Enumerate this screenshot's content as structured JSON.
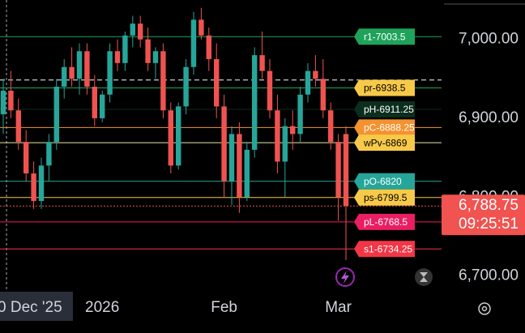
{
  "chart_data": {
    "type": "candlestick",
    "categories": [
      null,
      null,
      null,
      null,
      "0 Dec '25",
      null,
      null,
      null,
      null,
      null,
      null,
      null,
      null,
      "2026",
      null,
      null,
      null,
      null,
      null,
      null,
      null,
      null,
      null,
      null,
      null,
      null,
      null,
      null,
      null,
      "Feb",
      null,
      null,
      null,
      null,
      null,
      null,
      null,
      null,
      null,
      null,
      null,
      null,
      null,
      null,
      "Mar",
      null
    ],
    "ohlc": [
      [
        6905,
        6950,
        6880,
        6935
      ],
      [
        6935,
        6960,
        6900,
        6910
      ],
      [
        6910,
        6925,
        6860,
        6870
      ],
      [
        6870,
        6885,
        6820,
        6830
      ],
      [
        6830,
        6845,
        6785,
        6795
      ],
      [
        6795,
        6850,
        6785,
        6840
      ],
      [
        6840,
        6880,
        6820,
        6870
      ],
      [
        6870,
        6950,
        6860,
        6940
      ],
      [
        6940,
        6975,
        6925,
        6965
      ],
      [
        6965,
        6990,
        6940,
        6950
      ],
      [
        6950,
        6995,
        6930,
        6985
      ],
      [
        6985,
        6995,
        6930,
        6940
      ],
      [
        6940,
        6955,
        6890,
        6900
      ],
      [
        6900,
        6935,
        6895,
        6930
      ],
      [
        6930,
        6995,
        6920,
        6985
      ],
      [
        6985,
        7000,
        6960,
        6970
      ],
      [
        6970,
        7010,
        6960,
        7005
      ],
      [
        7005,
        7030,
        6990,
        7020
      ],
      [
        7020,
        7030,
        6990,
        7000
      ],
      [
        7000,
        7015,
        6960,
        6970
      ],
      [
        6970,
        6990,
        6950,
        6985
      ],
      [
        6985,
        6995,
        6900,
        6910
      ],
      [
        6910,
        6920,
        6830,
        6840
      ],
      [
        6840,
        6920,
        6835,
        6915
      ],
      [
        6915,
        6975,
        6905,
        6965
      ],
      [
        6965,
        7035,
        6955,
        7025
      ],
      [
        7025,
        7040,
        7000,
        7005
      ],
      [
        7005,
        7015,
        6960,
        6975
      ],
      [
        6975,
        6995,
        6900,
        6915
      ],
      [
        6915,
        6930,
        6800,
        6820
      ],
      [
        6820,
        6890,
        6790,
        6880
      ],
      [
        6880,
        6895,
        6780,
        6800
      ],
      [
        6800,
        6870,
        6795,
        6860
      ],
      [
        6860,
        6990,
        6850,
        6980
      ],
      [
        6980,
        7010,
        6950,
        6960
      ],
      [
        6960,
        6975,
        6900,
        6910
      ],
      [
        6910,
        6930,
        6830,
        6845
      ],
      [
        6845,
        6900,
        6800,
        6890
      ],
      [
        6890,
        6910,
        6860,
        6880
      ],
      [
        6880,
        6940,
        6870,
        6930
      ],
      [
        6930,
        6970,
        6920,
        6960
      ],
      [
        6960,
        6980,
        6940,
        6950
      ],
      [
        6950,
        6975,
        6900,
        6910
      ],
      [
        6910,
        6920,
        6860,
        6870
      ],
      [
        6870,
        6880,
        6770,
        6800
      ],
      [
        6880,
        6890,
        6720,
        6788.75
      ]
    ],
    "up_color": "#26a69a",
    "down_color": "#ef5350",
    "ylim": [
      6680,
      7050
    ],
    "yticks": [
      {
        "value": 7000,
        "label": "7,000.00"
      },
      {
        "value": 6900,
        "label": "6,900.00"
      },
      {
        "value": 6800,
        "label": "6,800.00"
      },
      {
        "value": 6700,
        "label": "6,700.00"
      }
    ],
    "levels": [
      {
        "label": "r1-7003.5",
        "value": 7003.5,
        "color": "#1fa35b",
        "text_color": "#ffffff"
      },
      {
        "value": 6948.5,
        "color": "#ffffff",
        "dashed": true
      },
      {
        "label": "pr-6938.5",
        "value": 6938.5,
        "color": "#f7c948",
        "line_color": "#1fa35b",
        "text_color": "#000000"
      },
      {
        "label": "pH-6911.25",
        "value": 6911.25,
        "color": "#0b2e1d",
        "text_color": "#ffffff"
      },
      {
        "label": "pC-6888.25",
        "value": 6888.25,
        "color": "#f5922f",
        "text_color": "#ffffff"
      },
      {
        "label": "wPv-6869",
        "value": 6869,
        "color": "#f7c948",
        "line_color": "#e6e6b0",
        "text_color": "#000000"
      },
      {
        "label": "pO-6820",
        "value": 6820,
        "color": "#26a69a",
        "text_color": "#ffffff"
      },
      {
        "label": "ps-6799.5",
        "value": 6799.5,
        "color": "#f7c948",
        "text_color": "#000000"
      },
      {
        "label": "pL-6768.5",
        "value": 6768.5,
        "color": "#e91e63",
        "text_color": "#ffffff"
      },
      {
        "label": "s1-6734.25",
        "value": 6734.25,
        "color": "#f23645",
        "text_color": "#ffffff"
      }
    ],
    "last_price": {
      "value": 6788.75,
      "label": "6,788.75",
      "countdown": "09:25:51",
      "color": "#f05350"
    }
  }
}
